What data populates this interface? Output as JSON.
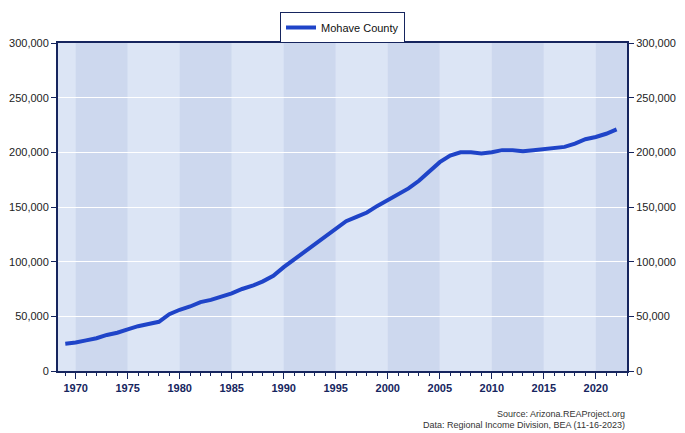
{
  "chart_data": {
    "type": "line",
    "series": [
      {
        "name": "Mohave County",
        "color": "#1f44c8",
        "values": [
          25000,
          26000,
          28000,
          30000,
          33000,
          35000,
          38000,
          41000,
          43000,
          45000,
          52000,
          56000,
          59000,
          63000,
          65000,
          68000,
          71000,
          75000,
          78000,
          82000,
          87000,
          95000,
          102000,
          109000,
          116000,
          124000,
          131000,
          137000,
          141000,
          145000,
          151000,
          156000,
          161000,
          167000,
          174000,
          182000,
          191000,
          197000,
          200000,
          200000,
          199000,
          200000,
          202000,
          202000,
          201000,
          202000,
          203000,
          204000,
          205000,
          208000,
          212000,
          214000,
          217000,
          221000
        ]
      }
    ],
    "x": [
      1969,
      1970,
      1971,
      1972,
      1973,
      1974,
      1975,
      1976,
      1977,
      1978,
      1979,
      1980,
      1981,
      1982,
      1983,
      1984,
      1985,
      1986,
      1987,
      1988,
      1989,
      1990,
      1991,
      1992,
      1993,
      1994,
      1995,
      1996,
      1997,
      1998,
      1999,
      2000,
      2001,
      2002,
      2003,
      2004,
      2005,
      2006,
      2007,
      2008,
      2009,
      2010,
      2011,
      2012,
      2013,
      2014,
      2015,
      2016,
      2017,
      2018,
      2019,
      2020,
      2021,
      2022
    ],
    "xlim": [
      1968.3,
      2023
    ],
    "xticks": [
      1970,
      1975,
      1980,
      1985,
      1990,
      1995,
      2000,
      2005,
      2010,
      2015,
      2020
    ],
    "ylim": [
      0,
      300000
    ],
    "yticks": [
      0,
      {
        "value": 50000,
        "label": "50,000"
      },
      {
        "value": 100000,
        "label": "100,000"
      },
      {
        "value": 150000,
        "label": "150,000"
      },
      {
        "value": 200000,
        "label": "200,000"
      },
      {
        "value": 250000,
        "label": "250,000"
      },
      {
        "value": 300000,
        "label": "300,000"
      }
    ],
    "grid": true,
    "legend": "top",
    "annotations": [
      "Source: Arizona.REAProject.org",
      "Data: Regional Income Division, BEA (11-16-2023)"
    ]
  }
}
